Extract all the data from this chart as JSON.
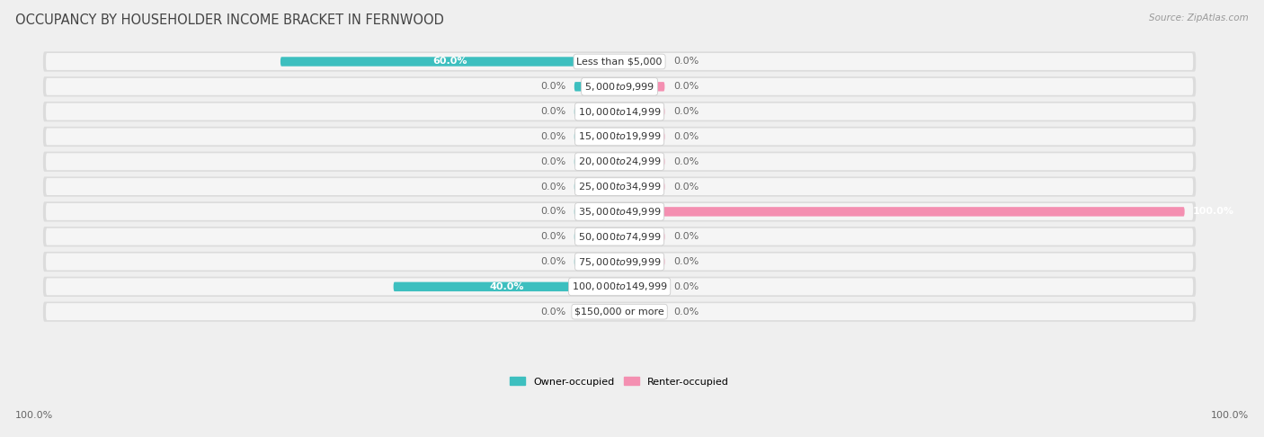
{
  "title": "OCCUPANCY BY HOUSEHOLDER INCOME BRACKET IN FERNWOOD",
  "source": "Source: ZipAtlas.com",
  "categories": [
    "Less than $5,000",
    "$5,000 to $9,999",
    "$10,000 to $14,999",
    "$15,000 to $19,999",
    "$20,000 to $24,999",
    "$25,000 to $34,999",
    "$35,000 to $49,999",
    "$50,000 to $74,999",
    "$75,000 to $99,999",
    "$100,000 to $149,999",
    "$150,000 or more"
  ],
  "owner_values": [
    60.0,
    0.0,
    0.0,
    0.0,
    0.0,
    0.0,
    0.0,
    0.0,
    0.0,
    40.0,
    0.0
  ],
  "renter_values": [
    0.0,
    0.0,
    0.0,
    0.0,
    0.0,
    0.0,
    100.0,
    0.0,
    0.0,
    0.0,
    0.0
  ],
  "owner_color": "#3dbfbf",
  "renter_color": "#f48fb1",
  "bg_color": "#efefef",
  "row_outer_color": "#dcdcdc",
  "row_inner_color": "#f5f5f5",
  "title_fontsize": 10.5,
  "label_fontsize": 8,
  "value_fontsize": 8,
  "max_value": 100.0,
  "stub_size": 8.0,
  "legend_owner": "Owner-occupied",
  "legend_renter": "Renter-occupied"
}
